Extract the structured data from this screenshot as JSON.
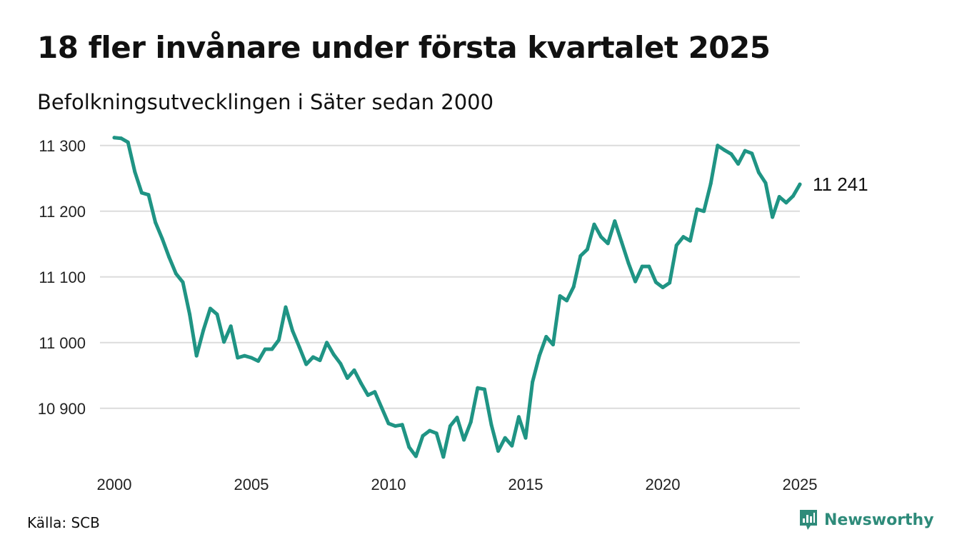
{
  "title": "18 fler invånare under första kvartalet 2025",
  "subtitle": "Befolkningsutvecklingen i Säter sedan 2000",
  "source": "Källa: SCB",
  "brand": {
    "name": "Newsworthy",
    "icon": "newsworthy-logo-icon",
    "color": "#2e8b7a"
  },
  "end_label": "11 241",
  "chart_data": {
    "type": "line",
    "title": "18 fler invånare under första kvartalet 2025",
    "subtitle": "Befolkningsutvecklingen i Säter sedan 2000",
    "xlabel": "",
    "ylabel": "",
    "line_color": "#1f9484",
    "grid": true,
    "xlim": [
      2000,
      2025
    ],
    "ylim": [
      10815,
      11315
    ],
    "x_ticks": [
      2000,
      2005,
      2010,
      2015,
      2020,
      2025
    ],
    "y_ticks": [
      10900,
      11000,
      11100,
      11200,
      11300
    ],
    "y_tick_labels": [
      "10 900",
      "11 000",
      "11 100",
      "11 200",
      "11 300"
    ],
    "series": [
      {
        "x": [
          2000.0,
          2000.25,
          2000.5,
          2000.75,
          2001.0,
          2001.25,
          2001.5,
          2001.75,
          2002.0,
          2002.25,
          2002.5,
          2002.75,
          2003.0,
          2003.25,
          2003.5,
          2003.75,
          2004.0,
          2004.25,
          2004.5,
          2004.75,
          2005.0,
          2005.25,
          2005.5,
          2005.75,
          2006.0,
          2006.25,
          2006.5,
          2006.75,
          2007.0,
          2007.25,
          2007.5,
          2007.75,
          2008.0,
          2008.25,
          2008.5,
          2008.75,
          2009.0,
          2009.25,
          2009.5,
          2009.75,
          2010.0,
          2010.25,
          2010.5,
          2010.75,
          2011.0,
          2011.25,
          2011.5,
          2011.75,
          2012.0,
          2012.25,
          2012.5,
          2012.75,
          2013.0,
          2013.25,
          2013.5,
          2013.75,
          2014.0,
          2014.25,
          2014.5,
          2014.75,
          2015.0,
          2015.25,
          2015.5,
          2015.75,
          2016.0,
          2016.25,
          2016.5,
          2016.75,
          2017.0,
          2017.25,
          2017.5,
          2017.75,
          2018.0,
          2018.25,
          2018.5,
          2018.75,
          2019.0,
          2019.25,
          2019.5,
          2019.75,
          2020.0,
          2020.25,
          2020.5,
          2020.75,
          2021.0,
          2021.25,
          2021.5,
          2021.75,
          2022.0,
          2022.25,
          2022.5,
          2022.75,
          2023.0,
          2023.25,
          2023.5,
          2023.75,
          2024.0,
          2024.25,
          2024.5,
          2024.75,
          2025.0
        ],
        "values": [
          11312,
          11311,
          11305,
          11260,
          11228,
          11225,
          11183,
          11158,
          11130,
          11105,
          11092,
          11043,
          10980,
          11019,
          11052,
          11043,
          11001,
          11025,
          10977,
          10980,
          10977,
          10972,
          10990,
          10990,
          11004,
          11054,
          11018,
          10993,
          10967,
          10978,
          10973,
          11000,
          10982,
          10968,
          10946,
          10958,
          10938,
          10920,
          10925,
          10901,
          10877,
          10873,
          10875,
          10841,
          10827,
          10858,
          10866,
          10862,
          10826,
          10873,
          10886,
          10852,
          10879,
          10931,
          10929,
          10875,
          10835,
          10855,
          10843,
          10887,
          10855,
          10940,
          10980,
          11009,
          10997,
          11071,
          11064,
          11085,
          11132,
          11142,
          11180,
          11161,
          11151,
          11185,
          11153,
          11121,
          11093,
          11116,
          11116,
          11092,
          11084,
          11091,
          11148,
          11161,
          11155,
          11203,
          11200,
          11242,
          11300,
          11293,
          11287,
          11272,
          11292,
          11288,
          11259,
          11243,
          11191,
          11222,
          11213,
          11223,
          11241
        ]
      }
    ]
  }
}
